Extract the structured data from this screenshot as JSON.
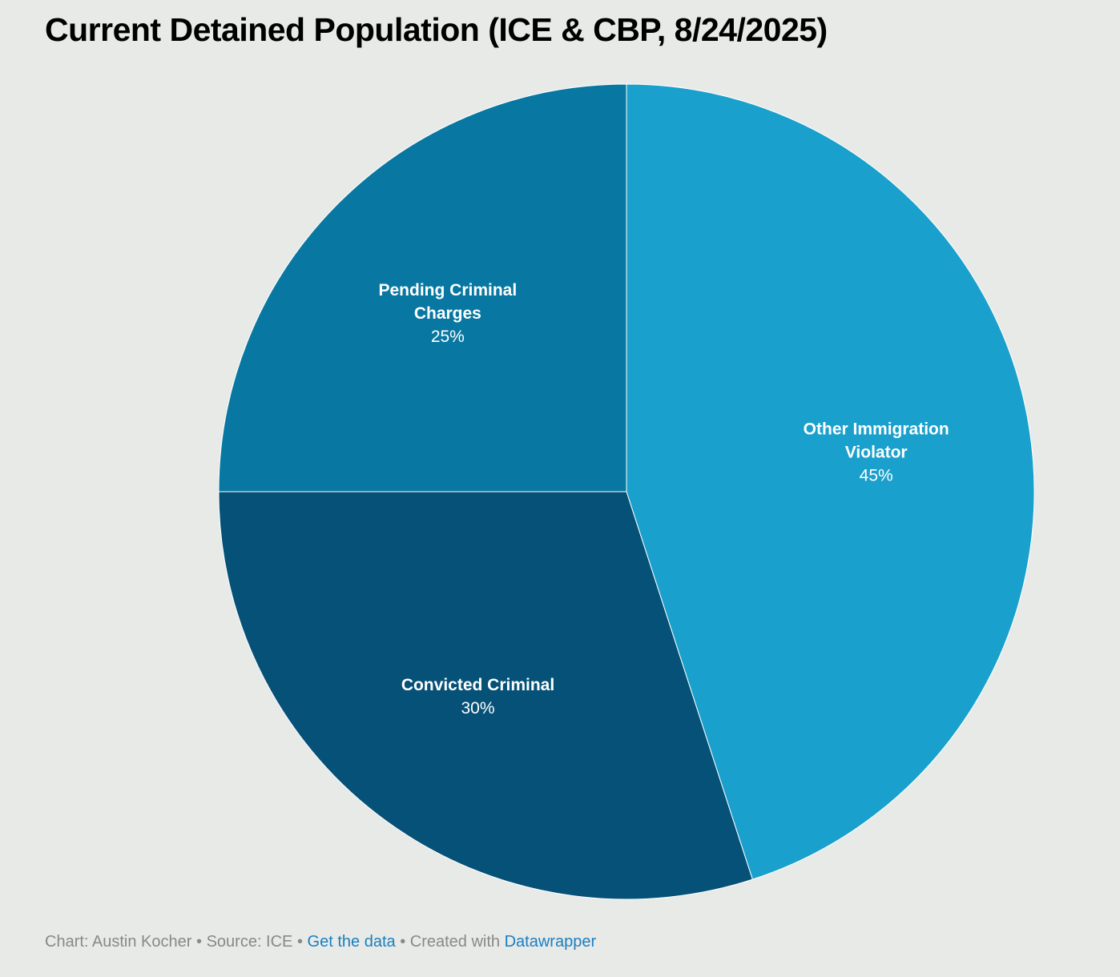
{
  "chart_data": {
    "type": "pie",
    "title": "Current Detained Population (ICE & CBP, 8/24/2025)",
    "slices": [
      {
        "label": "Other Immigration Violator",
        "label_lines": [
          "Other Immigration",
          "Violator"
        ],
        "value": 45,
        "value_label": "45%",
        "color": "#1aa0cc"
      },
      {
        "label": "Convicted Criminal",
        "label_lines": [
          "Convicted Criminal"
        ],
        "value": 30,
        "value_label": "30%",
        "color": "#065177"
      },
      {
        "label": "Pending Criminal Charges",
        "label_lines": [
          "Pending Criminal",
          "Charges"
        ],
        "value": 25,
        "value_label": "25%",
        "color": "#0877a1"
      }
    ],
    "start_angle_deg": 0,
    "direction": "clockwise"
  },
  "footer": {
    "chart_credit": "Chart: Austin Kocher",
    "separator": "•",
    "source": "Source: ICE",
    "get_data_link": "Get the data",
    "created_with": "Created with",
    "tool_link": "Datawrapper"
  }
}
